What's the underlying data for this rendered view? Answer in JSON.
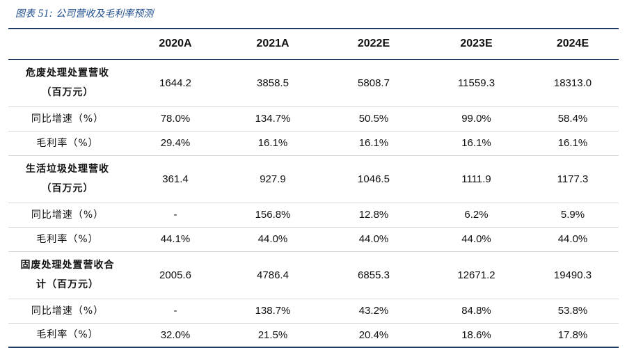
{
  "caption": {
    "prefix": "图表",
    "number": "51:",
    "title": "公司营收及毛利率预测"
  },
  "columns": [
    "",
    "2020A",
    "2021A",
    "2022E",
    "2023E",
    "2024E"
  ],
  "rows": [
    {
      "label": "危废处理处置营收（百万元）",
      "label_line1": "危废处理处置营收",
      "label_line2": "（百万元）",
      "bold": true,
      "values": [
        "1644.2",
        "3858.5",
        "5808.7",
        "11559.3",
        "18313.0"
      ]
    },
    {
      "label": "同比增速（%）",
      "bold": false,
      "values": [
        "78.0%",
        "134.7%",
        "50.5%",
        "99.0%",
        "58.4%"
      ]
    },
    {
      "label": "毛利率（%）",
      "bold": false,
      "values": [
        "29.4%",
        "16.1%",
        "16.1%",
        "16.1%",
        "16.1%"
      ]
    },
    {
      "label": "生活垃圾处理营收（百万元）",
      "label_line1": "生活垃圾处理营收",
      "label_line2": "（百万元）",
      "bold": true,
      "values": [
        "361.4",
        "927.9",
        "1046.5",
        "1111.9",
        "1177.3"
      ]
    },
    {
      "label": "同比增速（%）",
      "bold": false,
      "values": [
        "-",
        "156.8%",
        "12.8%",
        "6.2%",
        "5.9%"
      ]
    },
    {
      "label": "毛利率（%）",
      "bold": false,
      "values": [
        "44.1%",
        "44.0%",
        "44.0%",
        "44.0%",
        "44.0%"
      ]
    },
    {
      "label": "固废处理处置营收合计（百万元）",
      "label_line1": "固废处理处置营收合",
      "label_line2": "计（百万元）",
      "bold": true,
      "values": [
        "2005.6",
        "4786.4",
        "6855.3",
        "12671.2",
        "19490.3"
      ]
    },
    {
      "label": "同比增速（%）",
      "bold": false,
      "values": [
        "-",
        "138.7%",
        "43.2%",
        "84.8%",
        "53.8%"
      ]
    },
    {
      "label": "毛利率（%）",
      "bold": false,
      "values": [
        "32.0%",
        "21.5%",
        "20.4%",
        "18.6%",
        "17.8%"
      ]
    }
  ]
}
